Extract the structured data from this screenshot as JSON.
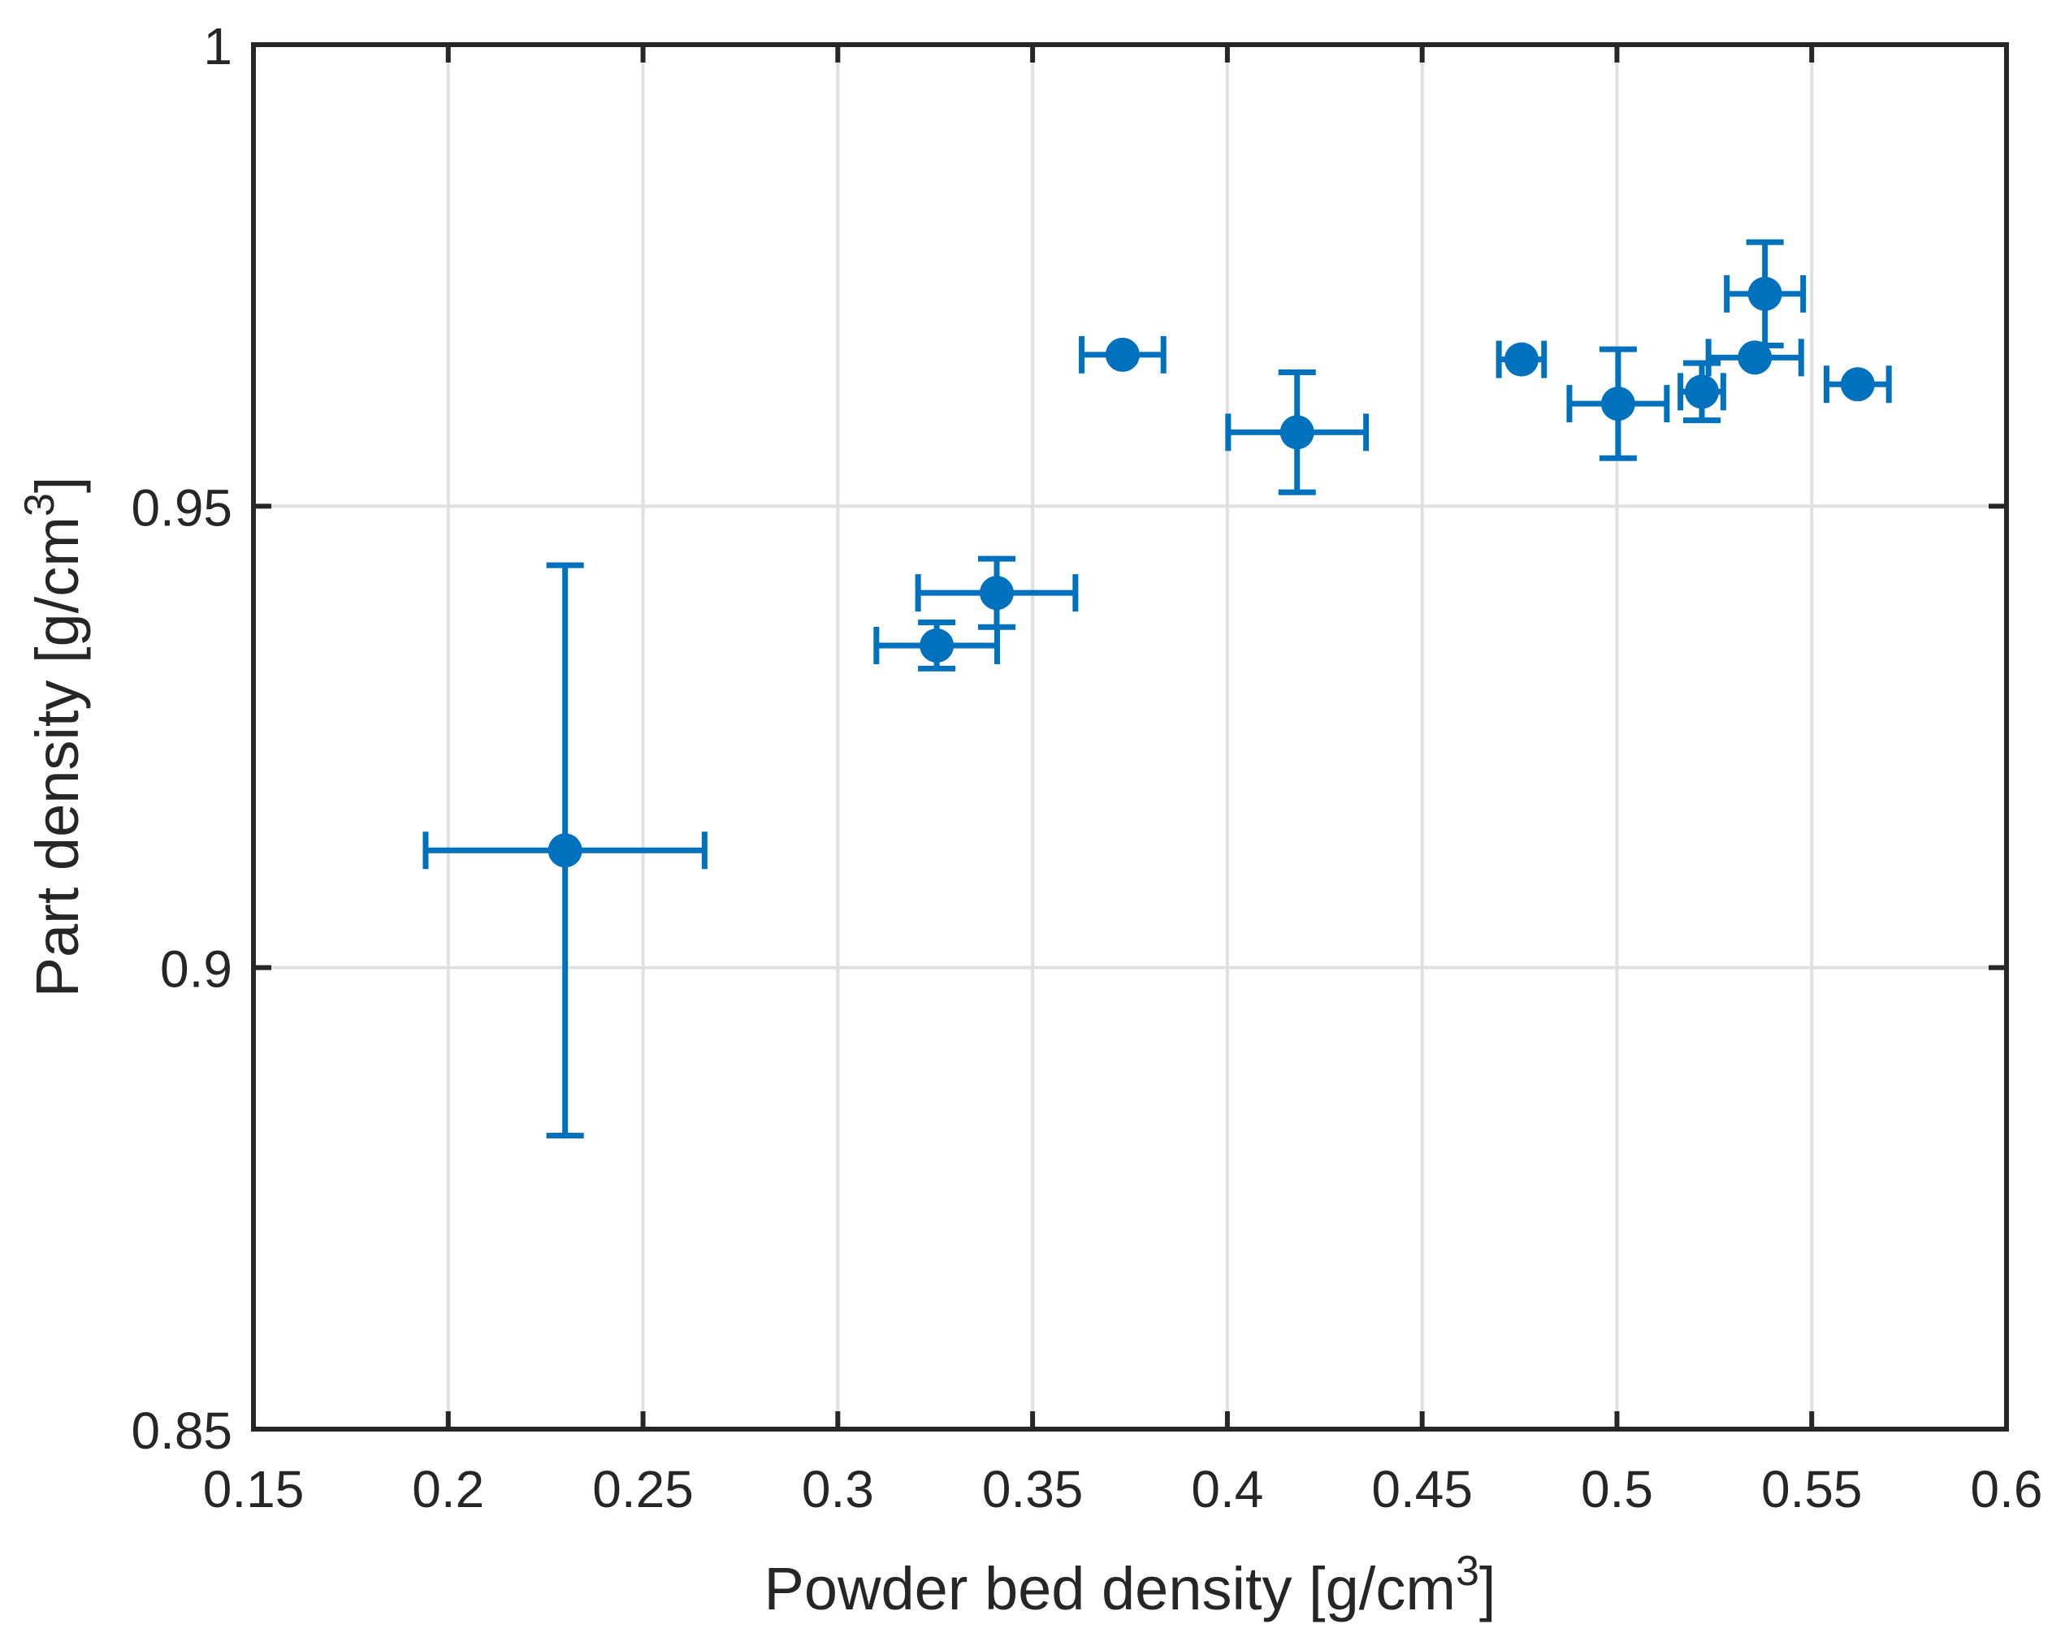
{
  "figure": {
    "kind": "matlab-style errorbar scatter figure",
    "background_color": "#ffffff"
  },
  "style": {
    "marker_color": "#0072BD",
    "axis_color": "#262626",
    "grid_color": "#e0e0e0",
    "tick_label_color": "#262626",
    "axis_label_color": "#262626"
  },
  "chart_data": {
    "type": "scatter",
    "title": "",
    "xlabel_pre": "Powder bed density [g/cm",
    "xlabel_sup": "3",
    "xlabel_post": "]",
    "ylabel_pre": "Part density [g/cm",
    "ylabel_sup": "3",
    "ylabel_post": "]",
    "xlim": [
      0.15,
      0.6
    ],
    "ylim": [
      0.85,
      1.0
    ],
    "xticks": [
      0.15,
      0.2,
      0.25,
      0.3,
      0.35,
      0.4,
      0.45,
      0.5,
      0.55,
      0.6
    ],
    "xtick_labels": [
      "0.15",
      "0.2",
      "0.25",
      "0.3",
      "0.35",
      "0.4",
      "0.45",
      "0.5",
      "0.55",
      "0.6"
    ],
    "yticks": [
      0.85,
      0.9,
      0.95,
      1.0
    ],
    "ytick_labels": [
      "0.85",
      "0.9",
      "0.95",
      "1"
    ],
    "grid": {
      "on": true,
      "x_values": [
        0.2,
        0.25,
        0.3,
        0.35,
        0.4,
        0.45,
        0.5,
        0.55
      ],
      "y_values": [
        0.9,
        0.95
      ]
    },
    "legend": "none",
    "series": [
      {
        "name": "part-density-vs-powder-bed-density",
        "marker": "circle",
        "color": "#0072BD",
        "points": [
          {
            "x": 0.23,
            "y": 0.9127,
            "xerr": 0.0358,
            "yerr": 0.0309
          },
          {
            "x": 0.3254,
            "y": 0.9349,
            "xerr": 0.0155,
            "yerr": 0.0025
          },
          {
            "x": 0.3408,
            "y": 0.9406,
            "xerr": 0.0202,
            "yerr": 0.0037
          },
          {
            "x": 0.3731,
            "y": 0.9664,
            "xerr": 0.0105,
            "yerr": 0
          },
          {
            "x": 0.4179,
            "y": 0.958,
            "xerr": 0.0177,
            "yerr": 0.0065
          },
          {
            "x": 0.4755,
            "y": 0.9659,
            "xerr": 0.0058,
            "yerr": 0
          },
          {
            "x": 0.5003,
            "y": 0.9611,
            "xerr": 0.0125,
            "yerr": 0.0059
          },
          {
            "x": 0.5218,
            "y": 0.9624,
            "xerr": 0.0055,
            "yerr": 0.0031
          },
          {
            "x": 0.538,
            "y": 0.973,
            "xerr": 0.0098,
            "yerr": 0.0056
          },
          {
            "x": 0.5354,
            "y": 0.9661,
            "xerr": 0.0119,
            "yerr": 0
          },
          {
            "x": 0.5618,
            "y": 0.9632,
            "xerr": 0.008,
            "yerr": 0
          }
        ]
      }
    ]
  }
}
